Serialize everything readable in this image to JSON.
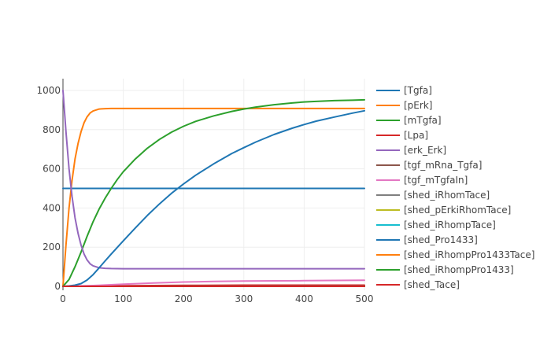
{
  "chart_data": {
    "type": "line",
    "title": "",
    "xlabel": "",
    "ylabel": "",
    "xlim": [
      0,
      500
    ],
    "ylim": [
      -20,
      1060
    ],
    "x_ticks": [
      0,
      100,
      200,
      300,
      400,
      500
    ],
    "y_ticks": [
      0,
      200,
      400,
      600,
      800,
      1000
    ],
    "grid": true,
    "legend_position": "right",
    "series": [
      {
        "name": "[Tgfa]",
        "color": "#1f77b4",
        "x": [
          0,
          500
        ],
        "y": [
          500,
          500
        ]
      },
      {
        "name": "[pErk]",
        "color": "#ff7f0e",
        "x": [
          0,
          5,
          10,
          15,
          20,
          25,
          30,
          35,
          40,
          45,
          50,
          60,
          70,
          80,
          100,
          150,
          200,
          300,
          400,
          500
        ],
        "y": [
          0,
          210,
          400,
          540,
          650,
          730,
          790,
          835,
          865,
          885,
          895,
          905,
          907,
          908,
          908,
          908,
          908,
          908,
          908,
          908
        ]
      },
      {
        "name": "[mTgfa]",
        "color": "#2ca02c",
        "x": [
          0,
          10,
          20,
          30,
          40,
          50,
          60,
          70,
          80,
          90,
          100,
          120,
          140,
          160,
          180,
          200,
          220,
          250,
          280,
          300,
          320,
          350,
          380,
          400,
          420,
          450,
          480,
          500
        ],
        "y": [
          0,
          35,
          100,
          175,
          255,
          330,
          395,
          450,
          500,
          545,
          585,
          650,
          705,
          750,
          787,
          817,
          842,
          870,
          893,
          905,
          915,
          927,
          936,
          941,
          944,
          948,
          950,
          952
        ]
      },
      {
        "name": "[Lpa]",
        "color": "#d62728",
        "x": [
          0,
          100,
          200,
          300,
          400,
          500
        ],
        "y": [
          0,
          3,
          5,
          6,
          6,
          6
        ]
      },
      {
        "name": "[erk_Erk]",
        "color": "#9467bd",
        "x": [
          0,
          5,
          10,
          15,
          20,
          25,
          30,
          35,
          40,
          45,
          50,
          60,
          70,
          80,
          100,
          150,
          200,
          300,
          400,
          500
        ],
        "y": [
          1000,
          790,
          600,
          460,
          350,
          270,
          210,
          165,
          135,
          115,
          105,
          95,
          92,
          91,
          90,
          90,
          90,
          90,
          90,
          90
        ]
      },
      {
        "name": "[tgf_mRna_Tgfa]",
        "color": "#8c564b",
        "x": [
          0,
          100,
          200,
          300,
          400,
          500
        ],
        "y": [
          0,
          1,
          2,
          2,
          2,
          2
        ]
      },
      {
        "name": "[tgf_mTgfaIn]",
        "color": "#e377c2",
        "x": [
          0,
          50,
          100,
          150,
          200,
          250,
          300,
          350,
          400,
          450,
          500
        ],
        "y": [
          0,
          4,
          11,
          17,
          22,
          25,
          27,
          28,
          29,
          30,
          31
        ]
      },
      {
        "name": "[shed_iRhomTace]",
        "color": "#7f7f7f",
        "x": [
          0,
          500
        ],
        "y": [
          0,
          0
        ]
      },
      {
        "name": "[shed_pErkiRhomTace]",
        "color": "#bcbd22",
        "x": [
          0,
          500
        ],
        "y": [
          0,
          0
        ]
      },
      {
        "name": "[shed_iRhompTace]",
        "color": "#17becf",
        "x": [
          0,
          500
        ],
        "y": [
          0,
          0
        ]
      },
      {
        "name": "[shed_Pro1433]",
        "color": "#1f77b4",
        "x": [
          0,
          10,
          20,
          30,
          40,
          50,
          60,
          70,
          80,
          100,
          120,
          140,
          160,
          180,
          200,
          220,
          250,
          280,
          300,
          320,
          350,
          380,
          400,
          420,
          450,
          480,
          500
        ],
        "y": [
          0,
          2,
          6,
          14,
          32,
          60,
          95,
          130,
          165,
          232,
          298,
          362,
          421,
          475,
          523,
          567,
          625,
          678,
          708,
          737,
          775,
          807,
          826,
          843,
          864,
          884,
          896
        ]
      },
      {
        "name": "[shed_iRhompPro1433Tace]",
        "color": "#ff7f0e",
        "x": [
          0,
          500
        ],
        "y": [
          0,
          0
        ]
      },
      {
        "name": "[shed_iRhompPro1433]",
        "color": "#2ca02c",
        "x": [
          0,
          500
        ],
        "y": [
          0,
          0
        ]
      },
      {
        "name": "[shed_Tace]",
        "color": "#d62728",
        "x": [
          0,
          500
        ],
        "y": [
          0,
          0
        ]
      }
    ]
  }
}
